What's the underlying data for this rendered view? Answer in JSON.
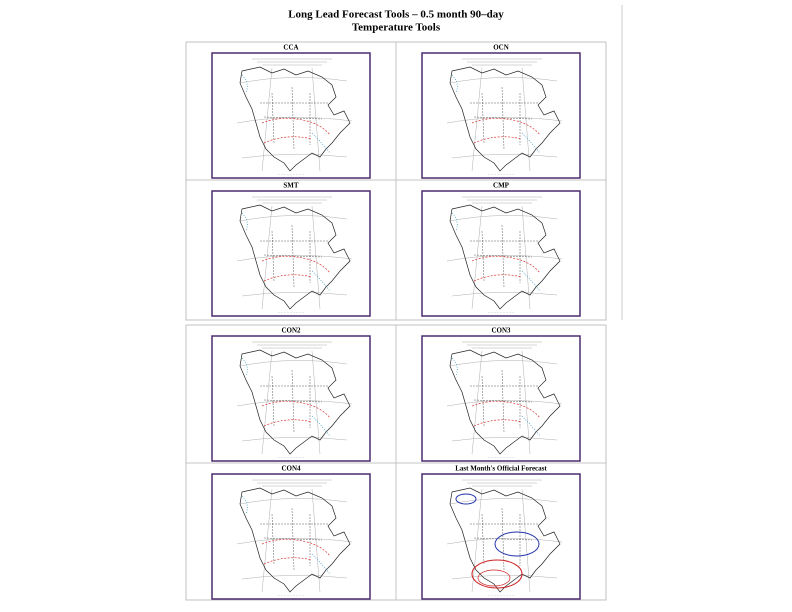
{
  "title": "Long Lead Forecast Tools – 0.5 month 90–day",
  "subtitle": "Temperature Tools",
  "panels": [
    {
      "label": "CCA"
    },
    {
      "label": "OCN"
    },
    {
      "label": "SMT"
    },
    {
      "label": "CMP"
    },
    {
      "label": "CON2"
    },
    {
      "label": "CON3"
    },
    {
      "label": "CON4"
    },
    {
      "label": "Last Month's Official Forecast"
    }
  ]
}
